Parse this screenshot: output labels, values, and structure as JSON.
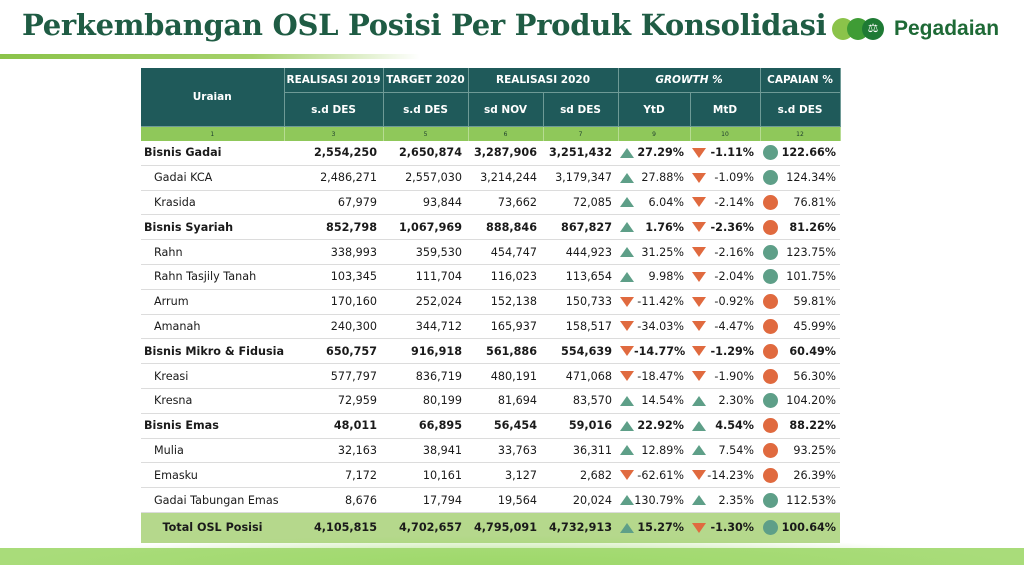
{
  "header": {
    "title": "Perkembangan OSL Posisi Per Produk Konsolidasi",
    "logo_text": "Pegadaian"
  },
  "table": {
    "head": {
      "uraian": "Uraian",
      "realisasi_2019": "REALISASI 2019",
      "target_2020": "TARGET 2020",
      "realisasi_2020": "REALISASI  2020",
      "growth": "GROWTH %",
      "capaian": "CAPAIAN %",
      "sd_des_1": "s.d DES",
      "sd_des_2": "s.d DES",
      "sd_nov": "sd NOV",
      "sd_des_3": "sd DES",
      "ytd": "YtD",
      "mtd": "MtD",
      "sd_des_4": "s.d DES"
    },
    "col_numbers": [
      "1",
      "3",
      "5",
      "6",
      "7",
      "9",
      "10",
      "12"
    ],
    "rows": [
      {
        "name": "Bisnis Gadai",
        "bold": true,
        "sub": false,
        "r2019": "2,554,250",
        "t2020": "2,650,874",
        "nov": "3,287,906",
        "des": "3,251,432",
        "ytd": "27.29%",
        "ytd_dir": "up",
        "mtd": "-1.11%",
        "mtd_dir": "down",
        "capaian": "122.66%",
        "cap_status": "green"
      },
      {
        "name": "Gadai KCA",
        "bold": false,
        "sub": true,
        "r2019": "2,486,271",
        "t2020": "2,557,030",
        "nov": "3,214,244",
        "des": "3,179,347",
        "ytd": "27.88%",
        "ytd_dir": "up",
        "mtd": "-1.09%",
        "mtd_dir": "down",
        "capaian": "124.34%",
        "cap_status": "green"
      },
      {
        "name": "Krasida",
        "bold": false,
        "sub": true,
        "r2019": "67,979",
        "t2020": "93,844",
        "nov": "73,662",
        "des": "72,085",
        "ytd": "6.04%",
        "ytd_dir": "up",
        "mtd": "-2.14%",
        "mtd_dir": "down",
        "capaian": "76.81%",
        "cap_status": "orange"
      },
      {
        "name": "Bisnis Syariah",
        "bold": true,
        "sub": false,
        "r2019": "852,798",
        "t2020": "1,067,969",
        "nov": "888,846",
        "des": "867,827",
        "ytd": "1.76%",
        "ytd_dir": "up",
        "mtd": "-2.36%",
        "mtd_dir": "down",
        "capaian": "81.26%",
        "cap_status": "orange"
      },
      {
        "name": "Rahn",
        "bold": false,
        "sub": true,
        "r2019": "338,993",
        "t2020": "359,530",
        "nov": "454,747",
        "des": "444,923",
        "ytd": "31.25%",
        "ytd_dir": "up",
        "mtd": "-2.16%",
        "mtd_dir": "down",
        "capaian": "123.75%",
        "cap_status": "green"
      },
      {
        "name": "Rahn Tasjily Tanah",
        "bold": false,
        "sub": true,
        "r2019": "103,345",
        "t2020": "111,704",
        "nov": "116,023",
        "des": "113,654",
        "ytd": "9.98%",
        "ytd_dir": "up",
        "mtd": "-2.04%",
        "mtd_dir": "down",
        "capaian": "101.75%",
        "cap_status": "green"
      },
      {
        "name": "Arrum",
        "bold": false,
        "sub": true,
        "r2019": "170,160",
        "t2020": "252,024",
        "nov": "152,138",
        "des": "150,733",
        "ytd": "-11.42%",
        "ytd_dir": "down",
        "mtd": "-0.92%",
        "mtd_dir": "down",
        "capaian": "59.81%",
        "cap_status": "orange"
      },
      {
        "name": "Amanah",
        "bold": false,
        "sub": true,
        "r2019": "240,300",
        "t2020": "344,712",
        "nov": "165,937",
        "des": "158,517",
        "ytd": "-34.03%",
        "ytd_dir": "down",
        "mtd": "-4.47%",
        "mtd_dir": "down",
        "capaian": "45.99%",
        "cap_status": "orange"
      },
      {
        "name": "Bisnis Mikro & Fidusia",
        "bold": true,
        "sub": false,
        "r2019": "650,757",
        "t2020": "916,918",
        "nov": "561,886",
        "des": "554,639",
        "ytd": "-14.77%",
        "ytd_dir": "down",
        "mtd": "-1.29%",
        "mtd_dir": "down",
        "capaian": "60.49%",
        "cap_status": "orange"
      },
      {
        "name": "Kreasi",
        "bold": false,
        "sub": true,
        "r2019": "577,797",
        "t2020": "836,719",
        "nov": "480,191",
        "des": "471,068",
        "ytd": "-18.47%",
        "ytd_dir": "down",
        "mtd": "-1.90%",
        "mtd_dir": "down",
        "capaian": "56.30%",
        "cap_status": "orange"
      },
      {
        "name": "Kresna",
        "bold": false,
        "sub": true,
        "r2019": "72,959",
        "t2020": "80,199",
        "nov": "81,694",
        "des": "83,570",
        "ytd": "14.54%",
        "ytd_dir": "up",
        "mtd": "2.30%",
        "mtd_dir": "up",
        "capaian": "104.20%",
        "cap_status": "green"
      },
      {
        "name": "Bisnis Emas",
        "bold": true,
        "sub": false,
        "r2019": "48,011",
        "t2020": "66,895",
        "nov": "56,454",
        "des": "59,016",
        "ytd": "22.92%",
        "ytd_dir": "up",
        "mtd": "4.54%",
        "mtd_dir": "up",
        "capaian": "88.22%",
        "cap_status": "orange"
      },
      {
        "name": "Mulia",
        "bold": false,
        "sub": true,
        "r2019": "32,163",
        "t2020": "38,941",
        "nov": "33,763",
        "des": "36,311",
        "ytd": "12.89%",
        "ytd_dir": "up",
        "mtd": "7.54%",
        "mtd_dir": "up",
        "capaian": "93.25%",
        "cap_status": "orange"
      },
      {
        "name": "Emasku",
        "bold": false,
        "sub": true,
        "r2019": "7,172",
        "t2020": "10,161",
        "nov": "3,127",
        "des": "2,682",
        "ytd": "-62.61%",
        "ytd_dir": "down",
        "mtd": "-14.23%",
        "mtd_dir": "down",
        "capaian": "26.39%",
        "cap_status": "orange"
      },
      {
        "name": "Gadai Tabungan Emas",
        "bold": false,
        "sub": true,
        "r2019": "8,676",
        "t2020": "17,794",
        "nov": "19,564",
        "des": "20,024",
        "ytd": "130.79%",
        "ytd_dir": "up",
        "mtd": "2.35%",
        "mtd_dir": "up",
        "capaian": "112.53%",
        "cap_status": "green"
      }
    ],
    "total": {
      "name": "Total OSL Posisi",
      "r2019": "4,105,815",
      "t2020": "4,702,657",
      "nov": "4,795,091",
      "des": "4,732,913",
      "ytd": "15.27%",
      "ytd_dir": "up",
      "mtd": "-1.30%",
      "mtd_dir": "down",
      "capaian": "100.64%",
      "cap_status": "green"
    }
  },
  "colors": {
    "header_bg": "#1f5a5a",
    "title": "#1f5c44",
    "subheader_green": "#8fc85a",
    "total_bg": "#b5d88c",
    "up": "#5e9f88",
    "down": "#e06a3f"
  }
}
